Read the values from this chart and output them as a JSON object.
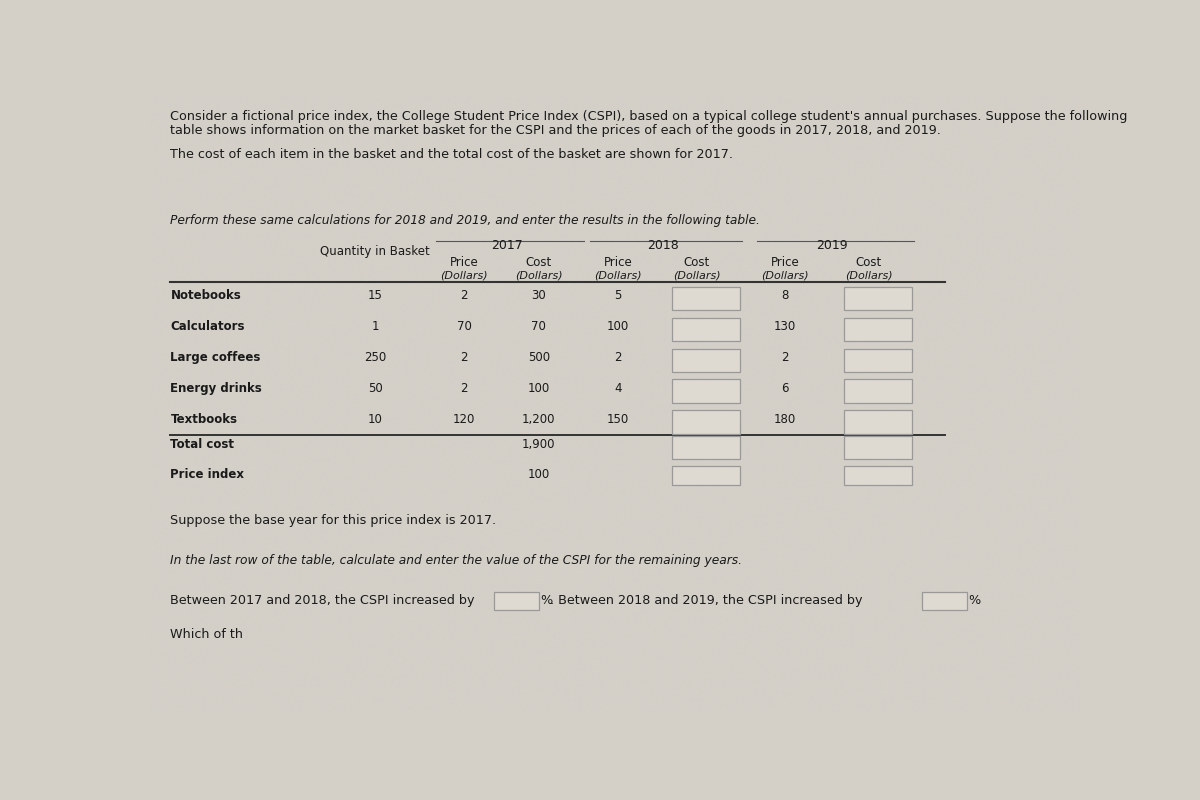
{
  "bg_color": "#ccc9c0",
  "bg_color2": "#d4d0c8",
  "title_text1": "Consider a fictional price index, the College Student Price Index (CSPI), based on a typical college student's annual purchases. Suppose the following",
  "title_text2": "table shows information on the market basket for the CSPI and the prices of each of the goods in 2017, 2018, and 2019.",
  "subtitle_text": "The cost of each item in the basket and the total cost of the basket are shown for 2017.",
  "instruction_text": "Perform these same calculations for 2018 and 2019, and enter the results in the following table.",
  "year_headers": [
    "2017",
    "2018",
    "2019"
  ],
  "rows": [
    {
      "label": "Notebooks",
      "qty": "15",
      "p17": "2",
      "c17": "30",
      "p18": "5",
      "p19": "8"
    },
    {
      "label": "Calculators",
      "qty": "1",
      "p17": "70",
      "c17": "70",
      "p18": "100",
      "p19": "130"
    },
    {
      "label": "Large coffees",
      "qty": "250",
      "p17": "2",
      "c17": "500",
      "p18": "2",
      "p19": "2"
    },
    {
      "label": "Energy drinks",
      "qty": "50",
      "p17": "2",
      "c17": "100",
      "p18": "4",
      "p19": "6"
    },
    {
      "label": "Textbooks",
      "qty": "10",
      "p17": "120",
      "c17": "1,200",
      "p18": "150",
      "p19": "180"
    }
  ],
  "total_cost_label": "Total cost",
  "total_cost_17": "1,900",
  "price_index_label": "Price index",
  "price_index_17": "100",
  "base_year_text": "Suppose the base year for this price index is 2017.",
  "instruction2_text": "In the last row of the table, calculate and enter the value of the CSPI for the remaining years.",
  "between_text1": "Between 2017 and 2018, the CSPI increased by",
  "pct_label1": "%",
  "between_text2": ". Between 2018 and 2019, the CSPI increased by",
  "pct_label2": "%",
  "bottom_text": "Which of th",
  "box_face": "#dedad2",
  "box_edge": "#999999",
  "text_color": "#1a1a1a",
  "line_color": "#555555",
  "header_line_color": "#333333"
}
